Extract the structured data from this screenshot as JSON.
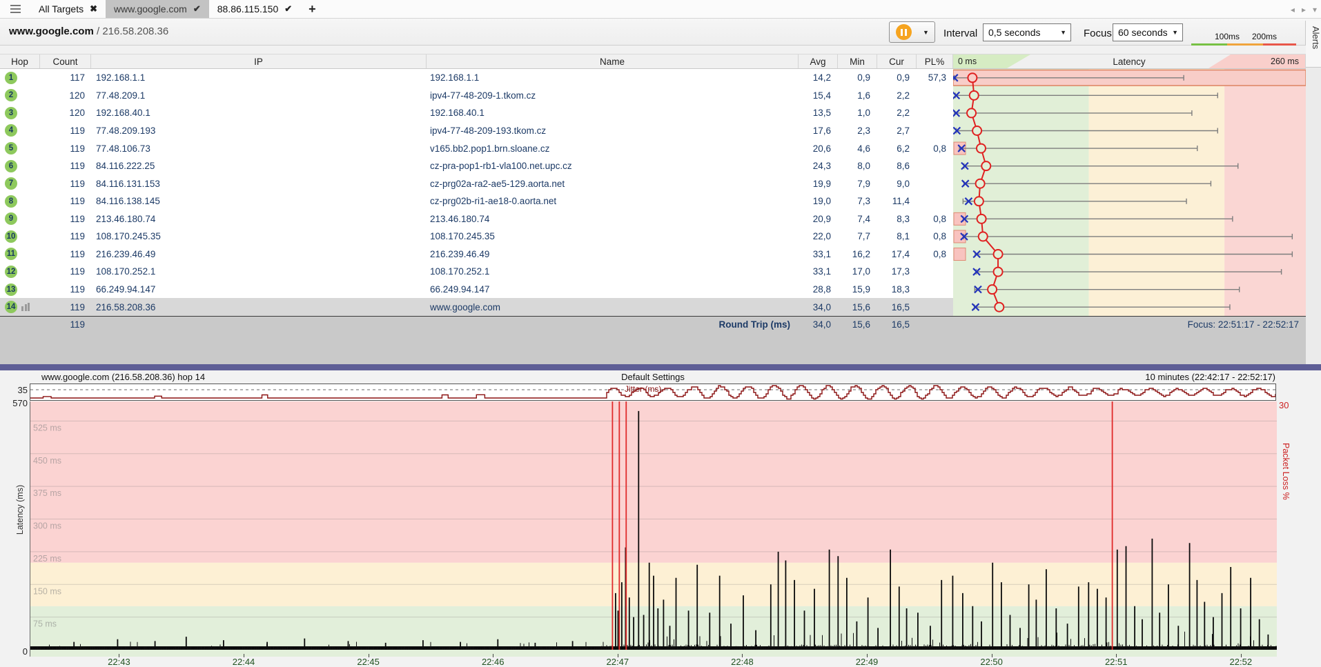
{
  "tabbar": {
    "tabs": [
      {
        "label": "All Targets",
        "icon": "close",
        "active": false
      },
      {
        "label": "www.google.com",
        "icon": "check",
        "active": true
      },
      {
        "label": "88.86.115.150",
        "icon": "check",
        "active": false
      }
    ],
    "add_label": "+",
    "nav": {
      "left": "◂",
      "right": "▸",
      "down": "▾"
    }
  },
  "toolbar": {
    "target": "www.google.com",
    "separator": " / ",
    "ip": "216.58.208.36",
    "interval_label": "Interval",
    "interval_value": "0,5 seconds",
    "focus_label": "Focus",
    "focus_value": "60 seconds",
    "dropdown_caret": "▼",
    "legend": {
      "labels": [
        "100ms",
        "200ms"
      ],
      "colors": [
        "#77c144",
        "#f0a43c",
        "#e8564a"
      ]
    }
  },
  "alerts_label": "Alerts",
  "table": {
    "columns": [
      "Hop",
      "Count",
      "IP",
      "Name",
      "Avg",
      "Min",
      "Cur",
      "PL%"
    ],
    "latency_header": {
      "left": "0 ms",
      "title": "Latency",
      "right": "260 ms"
    },
    "hops": [
      {
        "hop": "1",
        "count": "117",
        "ip": "192.168.1.1",
        "name": "192.168.1.1",
        "avg": "14,2",
        "min": "0,9",
        "cur": "0,9",
        "pl": "57,3"
      },
      {
        "hop": "2",
        "count": "120",
        "ip": "77.48.209.1",
        "name": "ipv4-77-48-209-1.tkom.cz",
        "avg": "15,4",
        "min": "1,6",
        "cur": "2,2",
        "pl": ""
      },
      {
        "hop": "3",
        "count": "120",
        "ip": "192.168.40.1",
        "name": "192.168.40.1",
        "avg": "13,5",
        "min": "1,0",
        "cur": "2,2",
        "pl": ""
      },
      {
        "hop": "4",
        "count": "119",
        "ip": "77.48.209.193",
        "name": "ipv4-77-48-209-193.tkom.cz",
        "avg": "17,6",
        "min": "2,3",
        "cur": "2,7",
        "pl": ""
      },
      {
        "hop": "5",
        "count": "119",
        "ip": "77.48.106.73",
        "name": "v165.bb2.pop1.brn.sloane.cz",
        "avg": "20,6",
        "min": "4,6",
        "cur": "6,2",
        "pl": "0,8"
      },
      {
        "hop": "6",
        "count": "119",
        "ip": "84.116.222.25",
        "name": "cz-pra-pop1-rb1-vla100.net.upc.cz",
        "avg": "24,3",
        "min": "8,0",
        "cur": "8,6",
        "pl": ""
      },
      {
        "hop": "7",
        "count": "119",
        "ip": "84.116.131.153",
        "name": "cz-prg02a-ra2-ae5-129.aorta.net",
        "avg": "19,9",
        "min": "7,9",
        "cur": "9,0",
        "pl": ""
      },
      {
        "hop": "8",
        "count": "119",
        "ip": "84.116.138.145",
        "name": "cz-prg02b-ri1-ae18-0.aorta.net",
        "avg": "19,0",
        "min": "7,3",
        "cur": "11,4",
        "pl": ""
      },
      {
        "hop": "9",
        "count": "119",
        "ip": "213.46.180.74",
        "name": "213.46.180.74",
        "avg": "20,9",
        "min": "7,4",
        "cur": "8,3",
        "pl": "0,8"
      },
      {
        "hop": "10",
        "count": "119",
        "ip": "108.170.245.35",
        "name": "108.170.245.35",
        "avg": "22,0",
        "min": "7,7",
        "cur": "8,1",
        "pl": "0,8"
      },
      {
        "hop": "11",
        "count": "119",
        "ip": "216.239.46.49",
        "name": "216.239.46.49",
        "avg": "33,1",
        "min": "16,2",
        "cur": "17,4",
        "pl": "0,8"
      },
      {
        "hop": "12",
        "count": "119",
        "ip": "108.170.252.1",
        "name": "108.170.252.1",
        "avg": "33,1",
        "min": "17,0",
        "cur": "17,3",
        "pl": ""
      },
      {
        "hop": "13",
        "count": "119",
        "ip": "66.249.94.147",
        "name": "66.249.94.147",
        "avg": "28,8",
        "min": "15,9",
        "cur": "18,3",
        "pl": ""
      },
      {
        "hop": "14",
        "count": "119",
        "ip": "216.58.208.36",
        "name": "www.google.com",
        "avg": "34,0",
        "min": "15,6",
        "cur": "16,5",
        "pl": "",
        "selected": true,
        "graph_icon": true
      }
    ],
    "footer": {
      "count": "119",
      "label": "Round Trip (ms)",
      "avg": "34,0",
      "min": "15,6",
      "cur": "16,5",
      "focus": "Focus: 22:51:17 - 22:52:17"
    }
  },
  "chart_data": [
    {
      "type": "scatter",
      "name": "hop-latency-column",
      "unit": "ms",
      "xlim": [
        0,
        260
      ],
      "bands": [
        [
          0,
          100,
          "#e1efd7"
        ],
        [
          100,
          200,
          "#fcf0d6"
        ],
        [
          200,
          260,
          "#fad6d3"
        ]
      ],
      "series": [
        {
          "hop": 1,
          "min": 0.9,
          "avg": 14.2,
          "cur": 0.9,
          "max": 170,
          "loss": 57.3,
          "row_highlight": true
        },
        {
          "hop": 2,
          "min": 1.6,
          "avg": 15.4,
          "cur": 2.2,
          "max": 195,
          "loss": 0
        },
        {
          "hop": 3,
          "min": 1.0,
          "avg": 13.5,
          "cur": 2.2,
          "max": 176,
          "loss": 0
        },
        {
          "hop": 4,
          "min": 2.3,
          "avg": 17.6,
          "cur": 2.7,
          "max": 195,
          "loss": 0
        },
        {
          "hop": 5,
          "min": 4.6,
          "avg": 20.6,
          "cur": 6.2,
          "max": 180,
          "loss": 0.8
        },
        {
          "hop": 6,
          "min": 8.0,
          "avg": 24.3,
          "cur": 8.6,
          "max": 210,
          "loss": 0
        },
        {
          "hop": 7,
          "min": 7.9,
          "avg": 19.9,
          "cur": 9.0,
          "max": 190,
          "loss": 0
        },
        {
          "hop": 8,
          "min": 7.3,
          "avg": 19.0,
          "cur": 11.4,
          "max": 172,
          "loss": 0
        },
        {
          "hop": 9,
          "min": 7.4,
          "avg": 20.9,
          "cur": 8.3,
          "max": 206,
          "loss": 0.8
        },
        {
          "hop": 10,
          "min": 7.7,
          "avg": 22.0,
          "cur": 8.1,
          "max": 250,
          "loss": 0.8
        },
        {
          "hop": 11,
          "min": 16.2,
          "avg": 33.1,
          "cur": 17.4,
          "max": 250,
          "loss": 0.8
        },
        {
          "hop": 12,
          "min": 17.0,
          "avg": 33.1,
          "cur": 17.3,
          "max": 242,
          "loss": 0
        },
        {
          "hop": 13,
          "min": 15.9,
          "avg": 28.8,
          "cur": 18.3,
          "max": 211,
          "loss": 0
        },
        {
          "hop": 14,
          "min": 15.6,
          "avg": 34.0,
          "cur": 16.5,
          "max": 204,
          "loss": 0
        }
      ]
    },
    {
      "type": "line",
      "name": "timeline",
      "title_left": "www.google.com (216.58.208.36) hop 14",
      "title_center": "Default Settings",
      "title_right": "10 minutes (22:42:17 - 22:52:17)",
      "ylabel": "Latency (ms)",
      "y_top_label": "570",
      "y_zero_label": "0",
      "ylim": [
        0,
        570
      ],
      "y2label": "Packet Loss %",
      "y2_top_label": "30",
      "y2lim": [
        0,
        30
      ],
      "grid_labels": [
        "75 ms",
        "150 ms",
        "225 ms",
        "300 ms",
        "375 ms",
        "450 ms",
        "525 ms"
      ],
      "grid_step_ms": 75,
      "bands": [
        [
          0,
          100,
          "#e2efda"
        ],
        [
          100,
          200,
          "#fdf0d4"
        ],
        [
          200,
          570,
          "#fbd3d2"
        ]
      ],
      "xticks": [
        "22:43",
        "22:44",
        "22:45",
        "22:46",
        "22:47",
        "22:48",
        "22:49",
        "22:50",
        "22:51",
        "22:52"
      ],
      "x_window_seconds": 600,
      "x_first_tick_offset_s": 43,
      "loss_event_fracs": [
        0.467,
        0.4725,
        0.478,
        0.868
      ],
      "baseline_ms": 8,
      "jitter": {
        "label": "Jitter (ms)",
        "axis_max_label": "35",
        "calm_until_frac": 0.462
      },
      "spikes": [
        [
          0.035,
          18
        ],
        [
          0.07,
          24
        ],
        [
          0.1,
          20
        ],
        [
          0.125,
          30
        ],
        [
          0.155,
          22
        ],
        [
          0.19,
          18
        ],
        [
          0.22,
          26
        ],
        [
          0.255,
          20
        ],
        [
          0.285,
          16
        ],
        [
          0.315,
          22
        ],
        [
          0.345,
          18
        ],
        [
          0.375,
          24
        ],
        [
          0.405,
          16
        ],
        [
          0.435,
          20
        ],
        [
          0.4695,
          130
        ],
        [
          0.4715,
          90
        ],
        [
          0.4745,
          155
        ],
        [
          0.4775,
          235
        ],
        [
          0.4805,
          120
        ],
        [
          0.484,
          75
        ],
        [
          0.488,
          548
        ],
        [
          0.492,
          80
        ],
        [
          0.4965,
          200
        ],
        [
          0.5,
          170
        ],
        [
          0.5035,
          95
        ],
        [
          0.508,
          115
        ],
        [
          0.513,
          55
        ],
        [
          0.518,
          165
        ],
        [
          0.528,
          90
        ],
        [
          0.535,
          195
        ],
        [
          0.545,
          85
        ],
        [
          0.553,
          170
        ],
        [
          0.562,
          60
        ],
        [
          0.572,
          125
        ],
        [
          0.582,
          45
        ],
        [
          0.594,
          150
        ],
        [
          0.6,
          225
        ],
        [
          0.606,
          205
        ],
        [
          0.613,
          160
        ],
        [
          0.621,
          90
        ],
        [
          0.629,
          140
        ],
        [
          0.641,
          230
        ],
        [
          0.648,
          215
        ],
        [
          0.655,
          165
        ],
        [
          0.663,
          65
        ],
        [
          0.672,
          120
        ],
        [
          0.68,
          50
        ],
        [
          0.69,
          230
        ],
        [
          0.697,
          145
        ],
        [
          0.703,
          95
        ],
        [
          0.712,
          85
        ],
        [
          0.722,
          55
        ],
        [
          0.731,
          160
        ],
        [
          0.74,
          170
        ],
        [
          0.748,
          130
        ],
        [
          0.756,
          100
        ],
        [
          0.763,
          65
        ],
        [
          0.772,
          200
        ],
        [
          0.779,
          155
        ],
        [
          0.786,
          80
        ],
        [
          0.794,
          50
        ],
        [
          0.801,
          150
        ],
        [
          0.807,
          115
        ],
        [
          0.815,
          185
        ],
        [
          0.823,
          95
        ],
        [
          0.832,
          60
        ],
        [
          0.841,
          145
        ],
        [
          0.849,
          155
        ],
        [
          0.856,
          140
        ],
        [
          0.863,
          120
        ],
        [
          0.872,
          230
        ],
        [
          0.879,
          238
        ],
        [
          0.886,
          100
        ],
        [
          0.892,
          70
        ],
        [
          0.9,
          255
        ],
        [
          0.906,
          85
        ],
        [
          0.913,
          150
        ],
        [
          0.921,
          55
        ],
        [
          0.93,
          245
        ],
        [
          0.936,
          160
        ],
        [
          0.942,
          110
        ],
        [
          0.949,
          75
        ],
        [
          0.956,
          130
        ],
        [
          0.963,
          190
        ],
        [
          0.971,
          95
        ],
        [
          0.979,
          165
        ],
        [
          0.986,
          70
        ],
        [
          0.993,
          35
        ]
      ]
    }
  ]
}
